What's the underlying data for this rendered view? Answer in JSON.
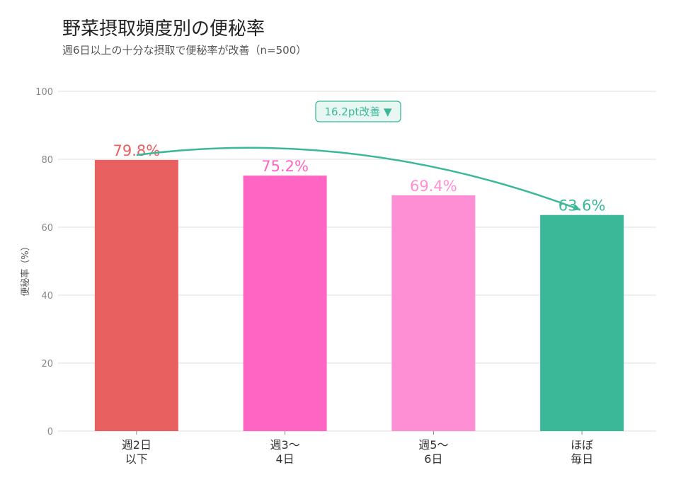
{
  "chart_data": {
    "type": "bar",
    "title": "野菜摂取頻度別の便秘率",
    "subtitle": "週6日以上の十分な摂取で便秘率が改善（n=500）",
    "ylabel": "便秘率（%）",
    "ylim": [
      0,
      100
    ],
    "yticks": [
      0,
      20,
      40,
      60,
      80,
      100
    ],
    "grid": true,
    "categories": [
      [
        "週2日",
        "以下"
      ],
      [
        "週3〜",
        "4日"
      ],
      [
        "週5〜",
        "6日"
      ],
      [
        "ほぼ",
        "毎日"
      ]
    ],
    "values": [
      79.8,
      75.2,
      69.4,
      63.6
    ],
    "data_labels": [
      "79.8%",
      "75.2%",
      "69.4%",
      "63.6%"
    ],
    "colors": [
      "#e86060",
      "#ff66c4",
      "#ff8fd4",
      "#3bb898"
    ],
    "annotation": {
      "text": "16.2pt改善 ▼",
      "color": "#3bb898",
      "background": "#e9f7f2"
    }
  }
}
